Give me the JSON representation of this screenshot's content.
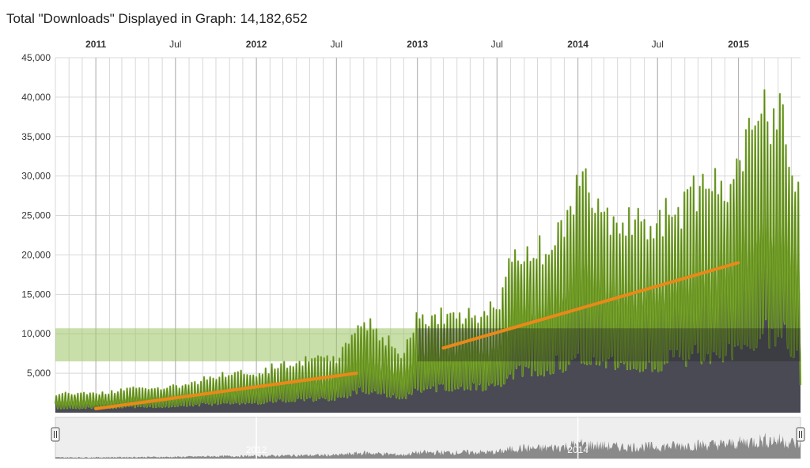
{
  "title_prefix": "Total \"Downloads\" Displayed in Graph: ",
  "total_downloads": "14,182,652",
  "colors": {
    "series": "#7aa82b",
    "series_edge": "#3c5a14",
    "area": "#4a4a55",
    "trend": "#e8891a",
    "band": "#9dc464",
    "grid": "#d8d8d8",
    "nav_bg": "#eeeeee",
    "nav_series": "#8a8a8a"
  },
  "chart_data": {
    "type": "area",
    "series": [
      {
        "x_start": "2010-10-01",
        "x_end": "2015-05-22",
        "interval": "daily",
        "weekly_peak_estimates": [
          {
            "x": "2010-10-01",
            "y": 2500
          },
          {
            "x": "2011-01-01",
            "y": 2600
          },
          {
            "x": "2011-04-01",
            "y": 3200
          },
          {
            "x": "2011-07-01",
            "y": 3500
          },
          {
            "x": "2011-10-01",
            "y": 5000
          },
          {
            "x": "2012-01-01",
            "y": 5500
          },
          {
            "x": "2012-04-01",
            "y": 7000
          },
          {
            "x": "2012-07-01",
            "y": 7500
          },
          {
            "x": "2012-09-01",
            "y": 12500
          },
          {
            "x": "2012-12-01",
            "y": 8000
          },
          {
            "x": "2013-01-01",
            "y": 13000
          },
          {
            "x": "2013-04-01",
            "y": 13500
          },
          {
            "x": "2013-07-01",
            "y": 14000
          },
          {
            "x": "2013-08-15",
            "y": 23000
          },
          {
            "x": "2013-10-01",
            "y": 22000
          },
          {
            "x": "2013-12-01",
            "y": 26000
          },
          {
            "x": "2014-01-01",
            "y": 32000
          },
          {
            "x": "2014-04-01",
            "y": 25500
          },
          {
            "x": "2014-07-01",
            "y": 26000
          },
          {
            "x": "2014-10-01",
            "y": 30000
          },
          {
            "x": "2014-12-01",
            "y": 30500
          },
          {
            "x": "2015-01-15",
            "y": 36000
          },
          {
            "x": "2015-03-01",
            "y": 40500
          },
          {
            "x": "2015-04-15",
            "y": 39500
          },
          {
            "x": "2015-05-15",
            "y": 31500
          }
        ]
      }
    ],
    "trend_lines": [
      {
        "from": {
          "x": "2011-01-01",
          "y": 500
        },
        "to": {
          "x": "2012-08-15",
          "y": 5000
        }
      },
      {
        "from": {
          "x": "2013-03-01",
          "y": 8200
        },
        "to": {
          "x": "2014-12-31",
          "y": 19000
        }
      }
    ],
    "highlight_band": {
      "x_from": "2010-10-01",
      "x_to": "2013-01-01",
      "y_from": 6500,
      "y_to": 10700
    },
    "dark_band": {
      "x_from": "2013-01-01",
      "x_to": "2015-05-22",
      "y_from": 6500,
      "y_to": 10700
    },
    "ylim": [
      0,
      45000
    ],
    "xlim": [
      "2010-10-01",
      "2015-05-22"
    ],
    "y_ticks": [
      "45,000",
      "40,000",
      "35,000",
      "30,000",
      "25,000",
      "20,000",
      "15,000",
      "10,000",
      "5,000"
    ],
    "x_ticks": [
      {
        "label": "2011",
        "date": "2011-01-01",
        "major": true
      },
      {
        "label": "Jul",
        "date": "2011-07-01",
        "major": false
      },
      {
        "label": "2012",
        "date": "2012-01-01",
        "major": true
      },
      {
        "label": "Jul",
        "date": "2012-07-01",
        "major": false
      },
      {
        "label": "2013",
        "date": "2013-01-01",
        "major": true
      },
      {
        "label": "Jul",
        "date": "2013-07-01",
        "major": false
      },
      {
        "label": "2014",
        "date": "2014-01-01",
        "major": true
      },
      {
        "label": "Jul",
        "date": "2014-07-01",
        "major": false
      },
      {
        "label": "2015",
        "date": "2015-01-01",
        "major": true
      }
    ],
    "grid": true,
    "legend": "none",
    "navigator": {
      "labels": [
        {
          "label": "2012",
          "date": "2012-01-01"
        },
        {
          "label": "2014",
          "date": "2014-01-01"
        }
      ]
    }
  }
}
